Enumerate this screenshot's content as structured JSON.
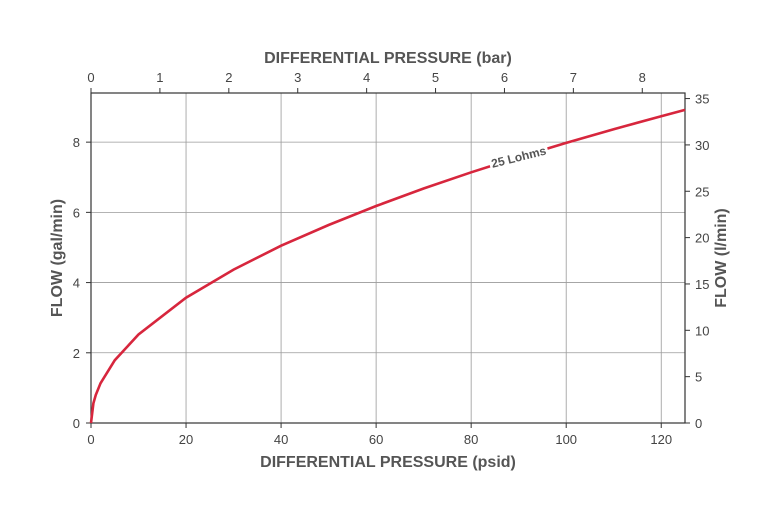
{
  "chart_data": {
    "type": "line",
    "x": [
      0,
      0.5,
      1,
      2,
      5,
      10,
      20,
      30,
      40,
      50,
      60,
      70,
      80,
      90,
      100,
      110,
      120,
      125
    ],
    "series": [
      {
        "name": "25 Lohms",
        "color": "#d7263d",
        "values": [
          0,
          0.56,
          0.8,
          1.13,
          1.79,
          2.52,
          3.57,
          4.37,
          5.05,
          5.64,
          6.18,
          6.68,
          7.14,
          7.57,
          7.98,
          8.37,
          8.74,
          8.92
        ]
      }
    ],
    "xlabel": "DIFFERENTIAL PRESSURE (psid)",
    "xlim": [
      0,
      125
    ],
    "x_ticks": [
      0,
      20,
      40,
      60,
      80,
      100,
      120
    ],
    "ylabel": "FLOW (gal/min)",
    "ylim": [
      0,
      9.4
    ],
    "y_ticks": [
      0,
      2,
      4,
      6,
      8
    ],
    "x2label": "DIFFERENTIAL PRESSURE (bar)",
    "x2lim": [
      0,
      8.62
    ],
    "x2_ticks": [
      0,
      1,
      2,
      3,
      4,
      5,
      6,
      7,
      8
    ],
    "y2label": "FLOW (l/min)",
    "y2lim": [
      0,
      35.6
    ],
    "y2_ticks": [
      0,
      5,
      10,
      15,
      20,
      25,
      30,
      35
    ],
    "curve_label": "25 Lohms",
    "grid": true
  }
}
